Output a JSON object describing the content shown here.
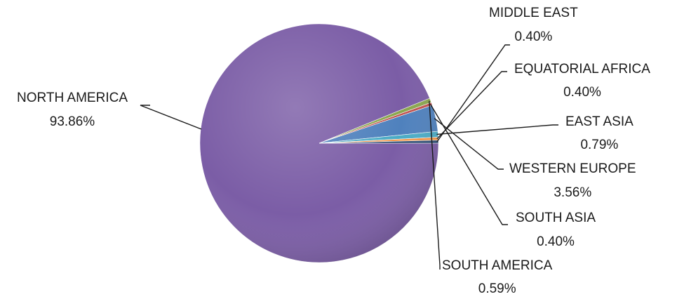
{
  "chart_data": {
    "type": "pie",
    "title": "",
    "slices": [
      {
        "label": "NORTH AMERICA",
        "value": 93.86,
        "value_label": "93.86%",
        "color": "#7b5da6"
      },
      {
        "label": "SOUTH AMERICA",
        "value": 0.59,
        "value_label": "0.59%",
        "color": "#8aa64d"
      },
      {
        "label": "SOUTH ASIA",
        "value": 0.4,
        "value_label": "0.40%",
        "color": "#c0504d"
      },
      {
        "label": "WESTERN EUROPE",
        "value": 3.56,
        "value_label": "3.56%",
        "color": "#4f81bd"
      },
      {
        "label": "EAST ASIA",
        "value": 0.79,
        "value_label": "0.79%",
        "color": "#4bacc6"
      },
      {
        "label": "EQUATORIAL AFRICA",
        "value": 0.4,
        "value_label": "0.40%",
        "color": "#f79646"
      },
      {
        "label": "MIDDLE EAST",
        "value": 0.4,
        "value_label": "0.40%",
        "color": "#2c4d75"
      }
    ],
    "legend": "none",
    "data_labels": "outside with leader lines"
  }
}
